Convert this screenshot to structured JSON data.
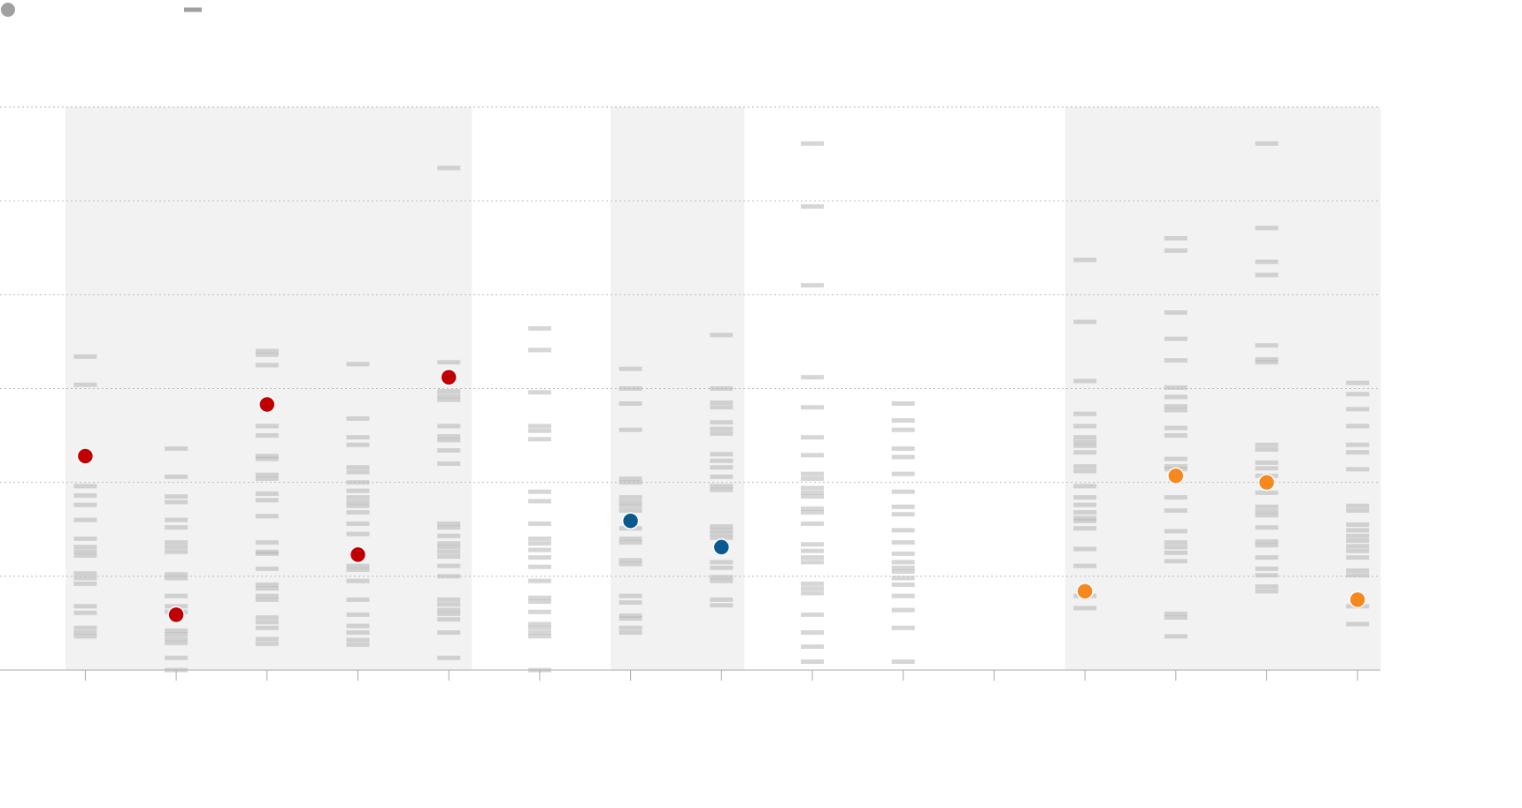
{
  "chart_data": {
    "type": "strip",
    "categories": [
      null,
      null,
      null,
      null,
      null,
      null,
      null,
      null,
      null,
      null,
      null,
      null,
      null,
      null,
      null
    ],
    "values": [
      2.28,
      0.59,
      2.83,
      1.23,
      3.12,
      null,
      1.59,
      1.31,
      null,
      null,
      null,
      0.84,
      2.07,
      2.0,
      0.75
    ],
    "colors": [
      "#c00000",
      "#c00000",
      "#c00000",
      "#c00000",
      "#c00000",
      null,
      "#0b5a8f",
      "#0b5a8f",
      null,
      null,
      null,
      "#f5881f",
      "#f5881f",
      "#f5881f",
      "#f5881f"
    ],
    "strip_color": "#b4b4b4",
    "strips": [
      [
        3.34,
        3.04,
        1.96,
        1.86,
        1.76,
        1.6,
        1.4,
        1.31,
        1.26,
        1.22,
        1.03,
        0.98,
        0.92,
        0.68,
        0.61,
        0.45,
        0.4,
        0.36
      ],
      [
        2.36,
        2.06,
        1.85,
        1.79,
        1.6,
        1.52,
        1.36,
        1.31,
        1.26,
        1.02,
        0.98,
        0.79,
        0.68,
        0.62,
        0.42,
        0.38,
        0.33,
        0.29,
        0.13,
        0
      ],
      [
        3.4,
        3.36,
        3.25,
        2.6,
        2.5,
        2.28,
        2.25,
        2.08,
        2.04,
        1.88,
        1.81,
        1.64,
        1.36,
        1.26,
        1.24,
        1.08,
        0.91,
        0.87,
        0.79,
        0.75,
        0.56,
        0.51,
        0.45,
        0.33,
        0.28
      ],
      [
        3.26,
        2.68,
        2.48,
        2.4,
        2.16,
        2.11,
        2,
        1.91,
        1.84,
        1.79,
        1.75,
        1.68,
        1.56,
        1.45,
        1.11,
        1.07,
        0.95,
        0.75,
        0.59,
        0.47,
        0.4,
        0.32,
        0.27
      ],
      [
        5.35,
        3.28,
        2.97,
        2.92,
        2.88,
        2.6,
        2.49,
        2.45,
        2.34,
        2.2,
        1.56,
        1.52,
        1.43,
        1.35,
        1.31,
        1.26,
        1.21,
        1.11,
        1,
        0.75,
        0.7,
        0.64,
        0.6,
        0.54,
        0.4,
        0.13
      ],
      [
        3.64,
        3.41,
        2.96,
        2.6,
        2.55,
        2.46,
        1.9,
        1.8,
        1.56,
        1.4,
        1.35,
        1.28,
        1.2,
        1.1,
        0.95,
        0.77,
        0.73,
        0.62,
        0.49,
        0.45,
        0.4,
        0.36,
        0
      ],
      [
        3.21,
        3,
        2.84,
        2.56,
        2.04,
        2,
        1.84,
        1.79,
        1.75,
        1.7,
        1.51,
        1.4,
        1.36,
        1.17,
        1.13,
        0.79,
        0.72,
        0.58,
        0.55,
        0.45,
        0.4
      ],
      [
        3.57,
        3,
        2.85,
        2.8,
        2.64,
        2.57,
        2.52,
        2.3,
        2.23,
        2.16,
        2.06,
        1.96,
        1.92,
        1.53,
        1.49,
        1.45,
        1.41,
        1.15,
        1.09,
        0.99,
        0.95,
        0.75,
        0.69
      ],
      [
        5.61,
        4.94,
        4.1,
        3.12,
        2.8,
        2.48,
        2.29,
        2.09,
        2.04,
        1.94,
        1.89,
        1.85,
        1.72,
        1.68,
        1.56,
        1.34,
        1.27,
        1.2,
        1.15,
        0.92,
        0.87,
        0.82,
        0.59,
        0.4,
        0.25,
        0.09
      ],
      [
        2.84,
        2.66,
        2.56,
        2.36,
        2.27,
        2.09,
        1.9,
        1.74,
        1.66,
        1.49,
        1.36,
        1.24,
        1.15,
        1.09,
        1.05,
        0.98,
        0.91,
        0.79,
        0.64,
        0.45,
        0.09
      ],
      [],
      [
        4.37,
        3.71,
        3.08,
        2.73,
        2.6,
        2.48,
        2.43,
        2.39,
        2.32,
        2.17,
        2.12,
        1.96,
        1.84,
        1.76,
        1.68,
        1.62,
        1.59,
        1.51,
        1.29,
        1.11,
        0.79,
        0.66
      ],
      [
        4.6,
        4.47,
        3.81,
        3.53,
        3.3,
        3.01,
        2.91,
        2.81,
        2.77,
        2.58,
        2.5,
        2.25,
        2.17,
        2.14,
        1.84,
        1.7,
        1.48,
        1.36,
        1.31,
        1.25,
        1.16,
        0.6,
        0.56,
        0.36
      ],
      [
        5.61,
        4.71,
        4.35,
        4.21,
        3.46,
        3.31,
        3.28,
        2.4,
        2.35,
        2.21,
        2.15,
        2.07,
        1.89,
        1.74,
        1.69,
        1.65,
        1.52,
        1.37,
        1.33,
        1.2,
        1.08,
        1.01,
        0.89,
        0.84
      ],
      [
        3.06,
        2.94,
        2.78,
        2.6,
        2.4,
        2.32,
        2.14,
        1.75,
        1.7,
        1.55,
        1.49,
        1.43,
        1.38,
        1.32,
        1.27,
        1.2,
        1.06,
        1.01,
        0.68,
        0.49
      ]
    ],
    "bands": [
      [
        0,
        4
      ],
      [
        6,
        7
      ],
      [
        11,
        14
      ]
    ],
    "ylim": [
      0,
      6
    ],
    "yticks": [
      0,
      1,
      2,
      3,
      4,
      5,
      6
    ],
    "grid": true
  }
}
